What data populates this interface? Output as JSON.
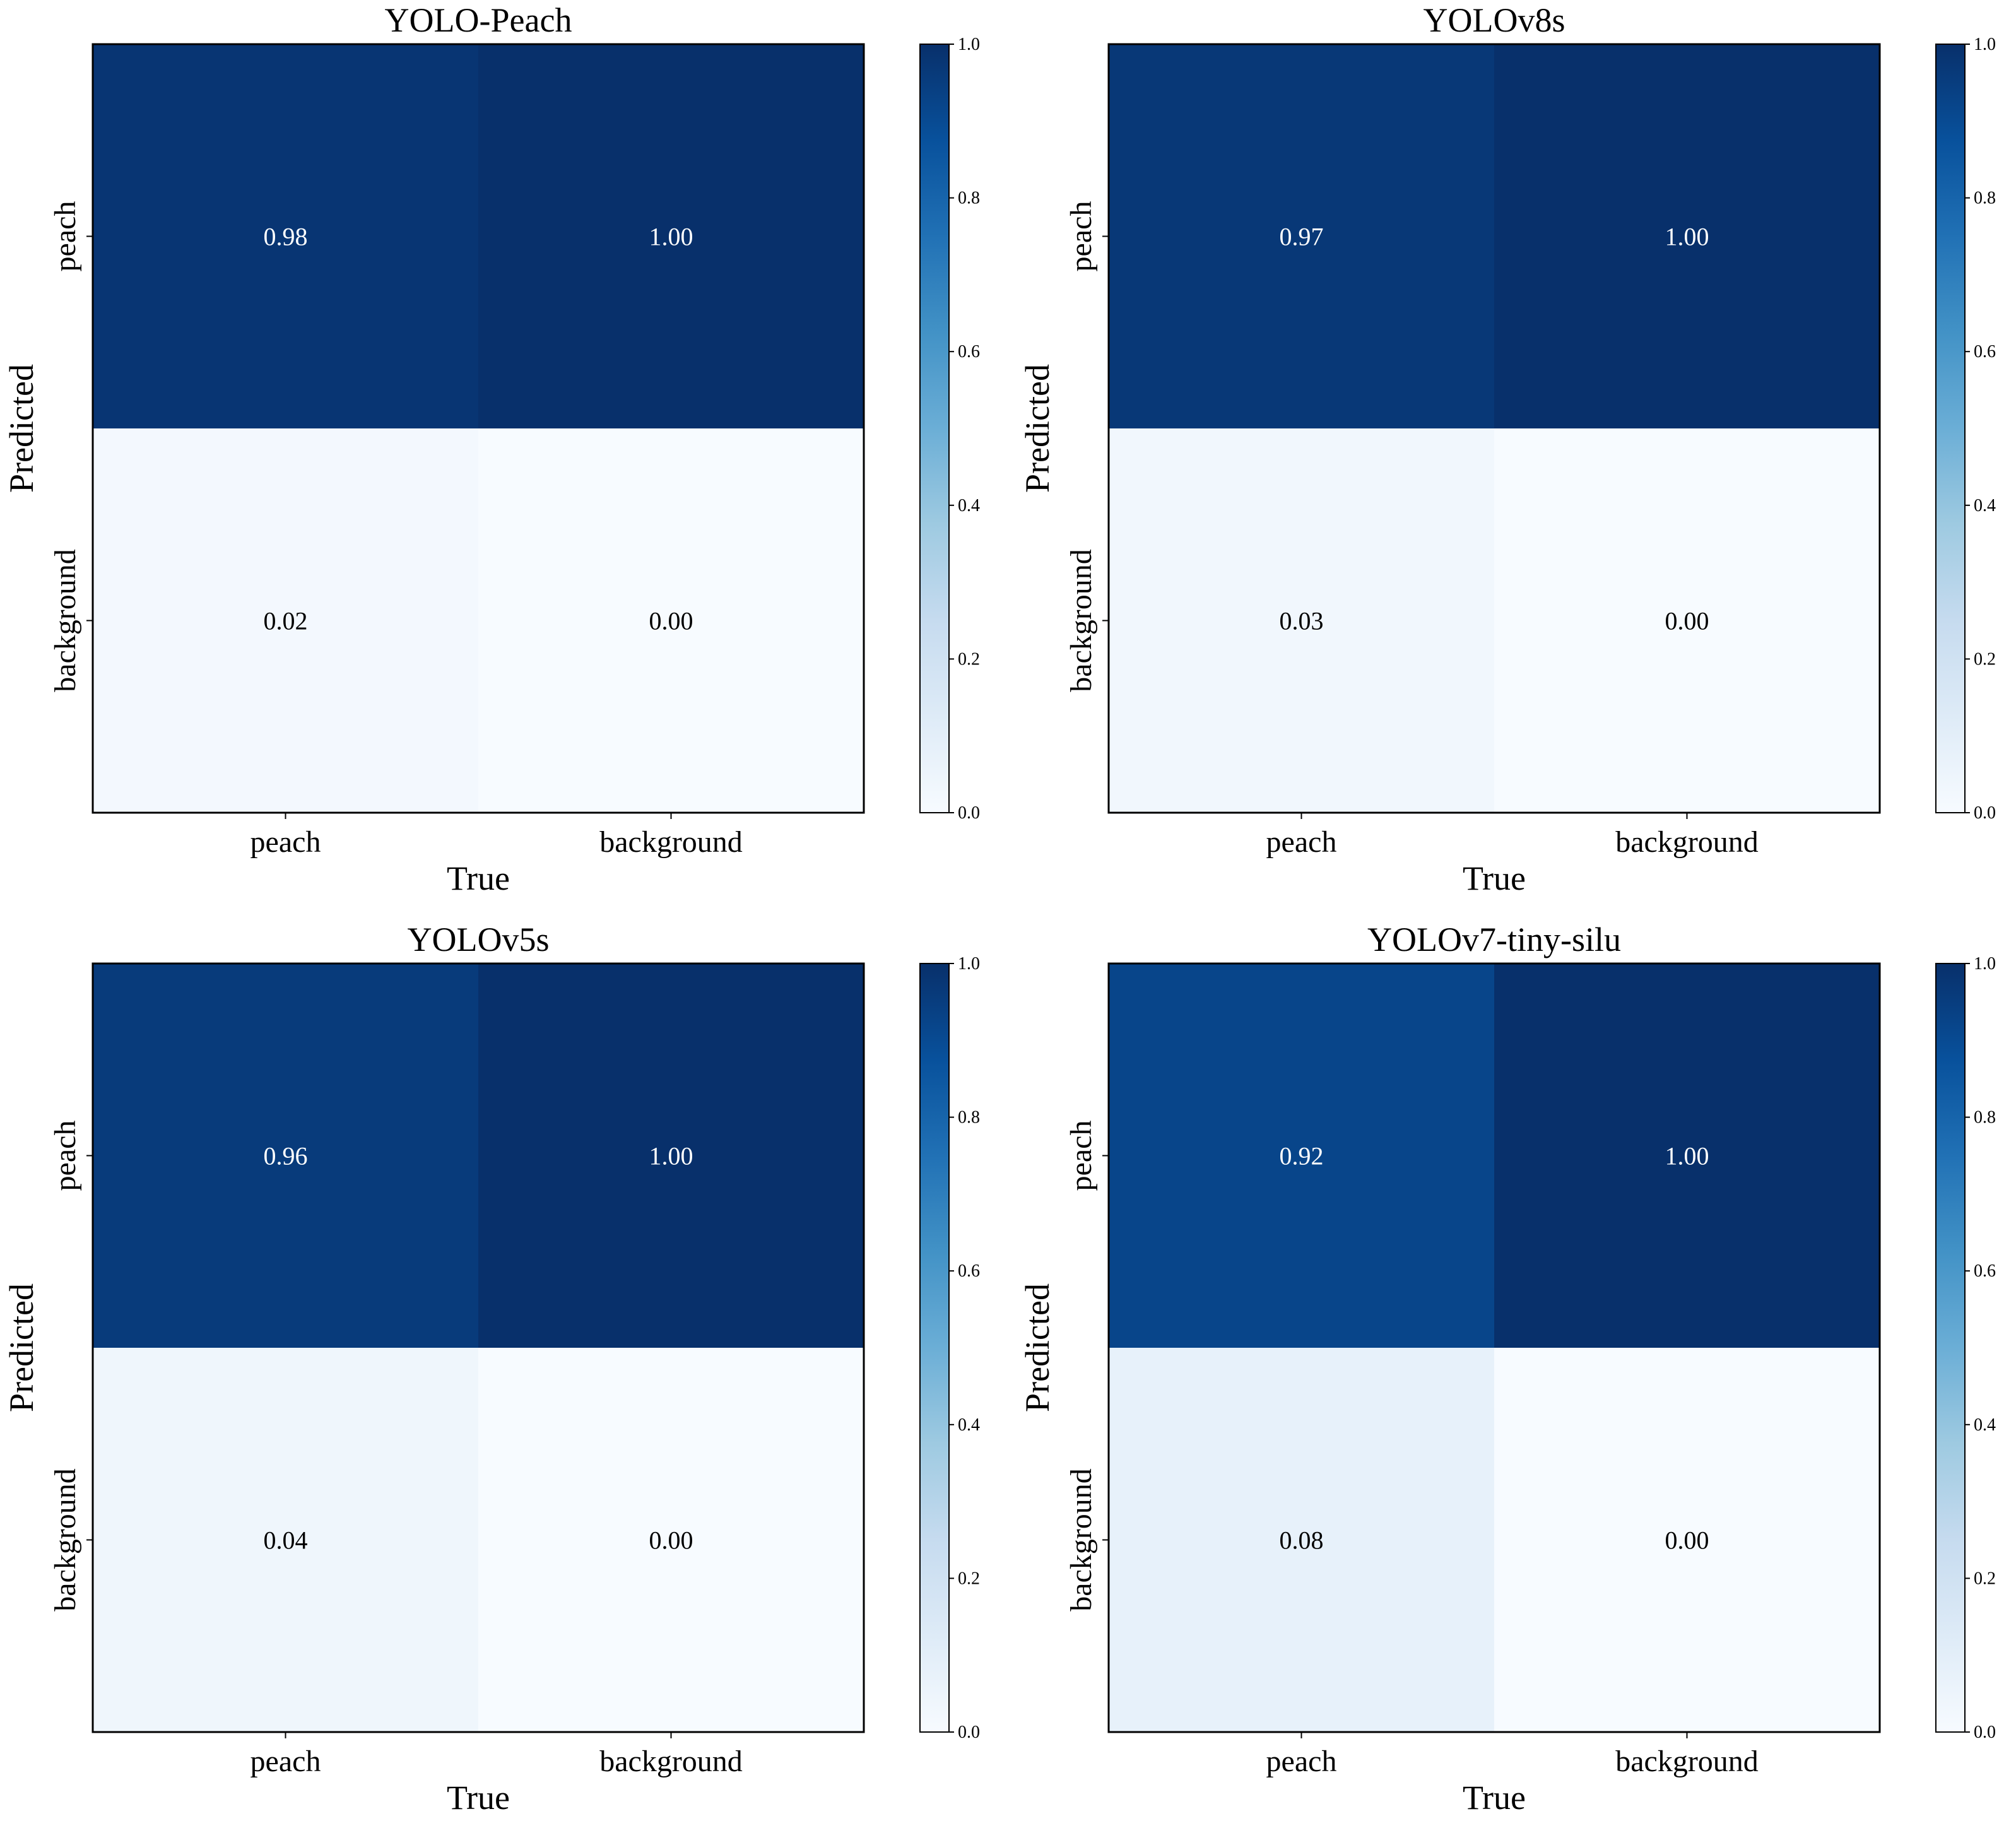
{
  "chart_data": [
    {
      "type": "heatmap",
      "title": "YOLO-Peach",
      "xlabel": "True",
      "ylabel": "Predicted",
      "x_categories": [
        "peach",
        "background"
      ],
      "y_categories": [
        "peach",
        "background"
      ],
      "values": [
        [
          0.98,
          1.0
        ],
        [
          0.02,
          0.0
        ]
      ],
      "labels": [
        [
          "0.98",
          "1.00"
        ],
        [
          "0.02",
          "0.00"
        ]
      ],
      "colorbar": {
        "range": [
          0.0,
          1.0
        ],
        "ticks": [
          "0.0",
          "0.2",
          "0.4",
          "0.6",
          "0.8",
          "1.0"
        ],
        "colormap": "Blues"
      }
    },
    {
      "type": "heatmap",
      "title": "YOLOv8s",
      "xlabel": "True",
      "ylabel": "Predicted",
      "x_categories": [
        "peach",
        "background"
      ],
      "y_categories": [
        "peach",
        "background"
      ],
      "values": [
        [
          0.97,
          1.0
        ],
        [
          0.03,
          0.0
        ]
      ],
      "labels": [
        [
          "0.97",
          "1.00"
        ],
        [
          "0.03",
          "0.00"
        ]
      ],
      "colorbar": {
        "range": [
          0.0,
          1.0
        ],
        "ticks": [
          "0.0",
          "0.2",
          "0.4",
          "0.6",
          "0.8",
          "1.0"
        ],
        "colormap": "Blues"
      }
    },
    {
      "type": "heatmap",
      "title": "YOLOv5s",
      "xlabel": "True",
      "ylabel": "Predicted",
      "x_categories": [
        "peach",
        "background"
      ],
      "y_categories": [
        "peach",
        "background"
      ],
      "values": [
        [
          0.96,
          1.0
        ],
        [
          0.04,
          0.0
        ]
      ],
      "labels": [
        [
          "0.96",
          "1.00"
        ],
        [
          "0.04",
          "0.00"
        ]
      ],
      "colorbar": {
        "range": [
          0.0,
          1.0
        ],
        "ticks": [
          "0.0",
          "0.2",
          "0.4",
          "0.6",
          "0.8",
          "1.0"
        ],
        "colormap": "Blues"
      }
    },
    {
      "type": "heatmap",
      "title": "YOLOv7-tiny-silu",
      "xlabel": "True",
      "ylabel": "Predicted",
      "x_categories": [
        "peach",
        "background"
      ],
      "y_categories": [
        "peach",
        "background"
      ],
      "values": [
        [
          0.92,
          1.0
        ],
        [
          0.08,
          0.0
        ]
      ],
      "labels": [
        [
          "0.92",
          "1.00"
        ],
        [
          "0.08",
          "0.00"
        ]
      ],
      "colorbar": {
        "range": [
          0.0,
          1.0
        ],
        "ticks": [
          "0.0",
          "0.2",
          "0.4",
          "0.6",
          "0.8",
          "1.0"
        ],
        "colormap": "Blues"
      }
    }
  ],
  "colors": {
    "colormap_stops": [
      "#f7fbff",
      "#deebf7",
      "#c6dbef",
      "#9ecae1",
      "#6baed6",
      "#4292c6",
      "#2171b5",
      "#08519c",
      "#08306b"
    ],
    "light_text": "#ffffff",
    "dark_text": "#000000",
    "frame": "#000000"
  }
}
